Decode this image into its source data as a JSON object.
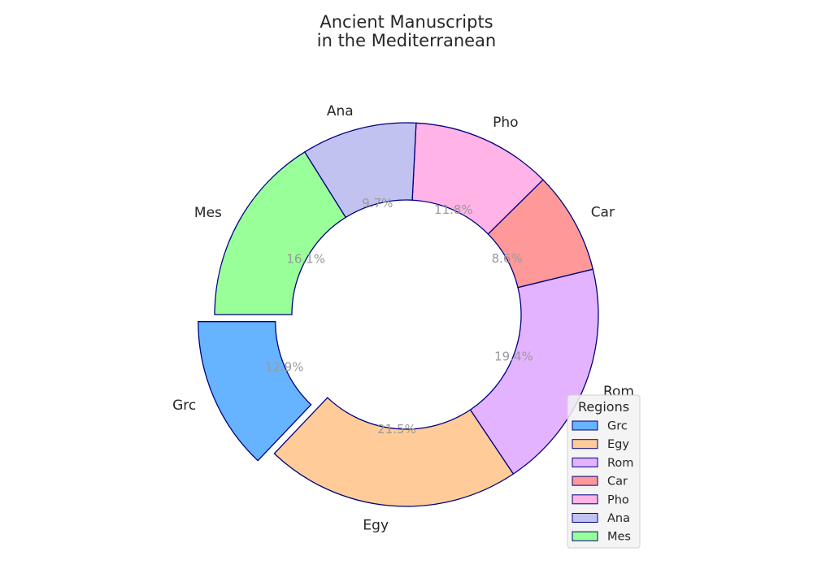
{
  "chart_data": {
    "type": "pie",
    "title_lines": [
      "Ancient Manuscripts",
      "in the Mediterranean"
    ],
    "categories": [
      "Grc",
      "Egy",
      "Rom",
      "Car",
      "Pho",
      "Ana",
      "Mes"
    ],
    "values": [
      12.9,
      21.5,
      19.4,
      8.6,
      11.8,
      9.7,
      16.1
    ],
    "percent_labels": [
      "12.9%",
      "21.5%",
      "19.4%",
      "8.6%",
      "11.8%",
      "9.7%",
      "16.1%"
    ],
    "colors": [
      "#66b3ff",
      "#ffcc99",
      "#e3b3ff",
      "#ff9999",
      "#ffb3e6",
      "#c2c2f0",
      "#99ff99"
    ],
    "edge_color": "#000080",
    "donut": true,
    "exploded": [
      "Grc"
    ],
    "legend": {
      "title": "Regions",
      "entries": [
        "Grc",
        "Egy",
        "Rom",
        "Car",
        "Pho",
        "Ana",
        "Mes"
      ],
      "placement": "lower-right"
    }
  }
}
